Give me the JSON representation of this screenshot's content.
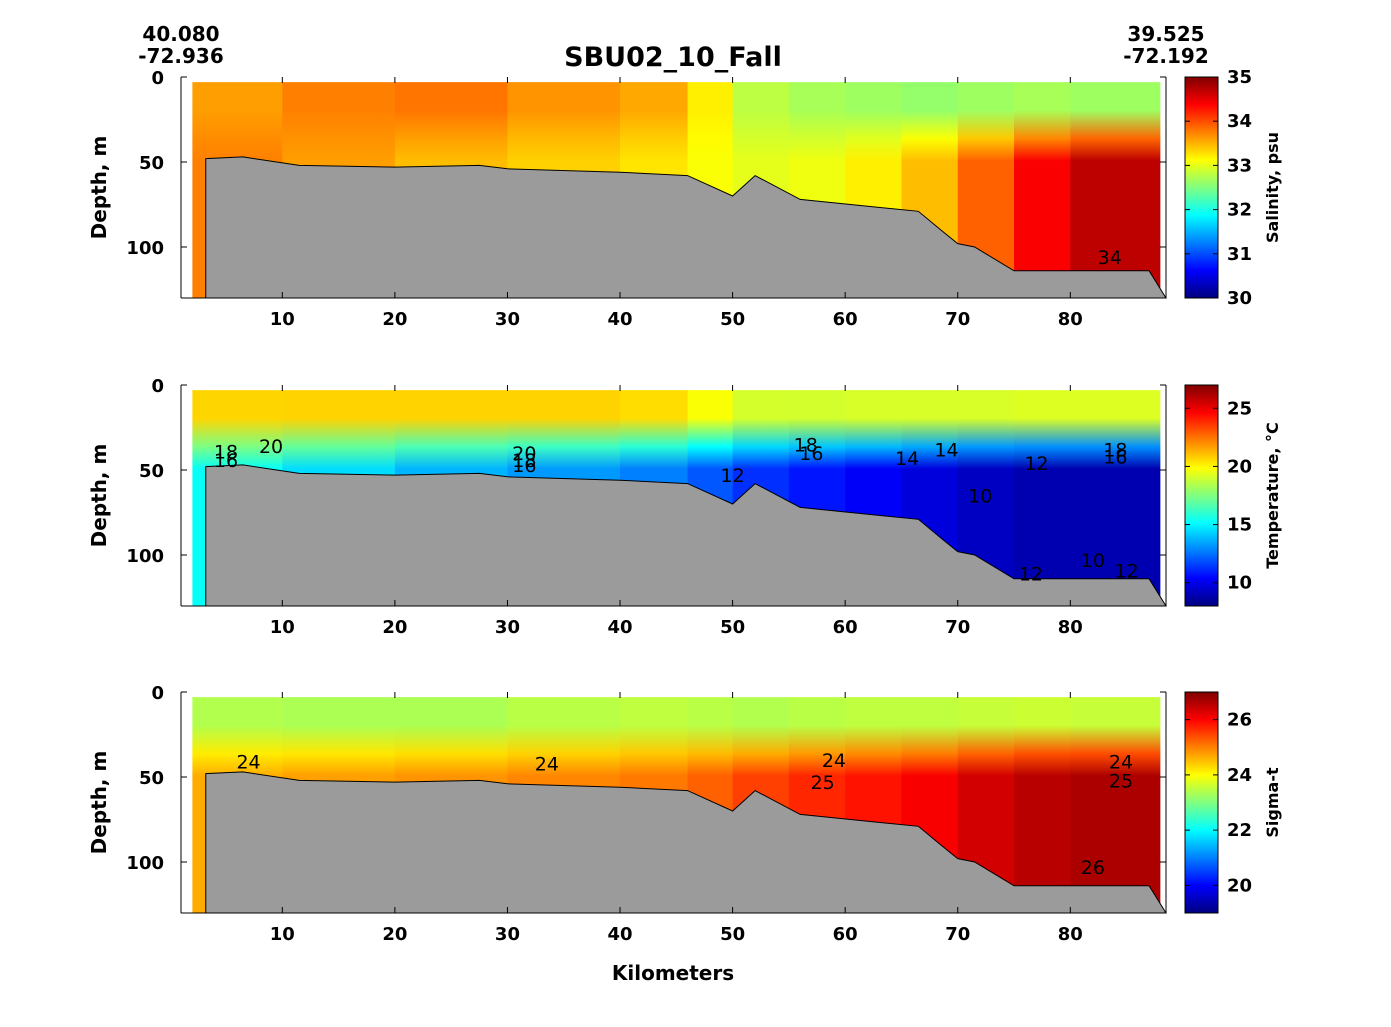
{
  "title": "SBU02_10_Fall",
  "start_coords": {
    "lat": "40.080",
    "lon": "-72.936"
  },
  "end_coords": {
    "lat": "39.525",
    "lon": "-72.192"
  },
  "colors": {
    "bottom": "#9b9b9b",
    "axis": "#000000"
  },
  "chart_data": [
    {
      "type": "heatmap",
      "id": "salinity",
      "xlabel": "",
      "ylabel": "Depth, m",
      "xlim": [
        1,
        88.5
      ],
      "ylim": [
        130,
        0
      ],
      "xticks": [
        10,
        20,
        30,
        40,
        50,
        60,
        70,
        80
      ],
      "yticks": [
        0,
        50,
        100
      ],
      "colorbar": {
        "label": "Salinity, psu",
        "min": 30,
        "max": 35,
        "ticks": [
          30,
          31,
          32,
          33,
          34,
          35
        ]
      },
      "field": {
        "distance_km": [
          2,
          10,
          20,
          30,
          40,
          46,
          50,
          55,
          60,
          65,
          70,
          75,
          80,
          88
        ],
        "surface_layer": [
          33.6,
          33.6,
          33.9,
          33.7,
          33.6,
          33.5,
          32.9,
          32.7,
          32.7,
          32.6,
          32.6,
          32.7,
          32.7,
          32.6
        ],
        "bottom_layer": [
          33.8,
          33.7,
          33.5,
          33.4,
          33.3,
          33.2,
          33.0,
          33.0,
          33.1,
          33.3,
          33.6,
          34.2,
          34.6,
          34.8
        ]
      },
      "contour_labels": [
        {
          "x": 83.5,
          "depth": 106,
          "text": "34"
        }
      ]
    },
    {
      "type": "heatmap",
      "id": "temperature",
      "xlabel": "",
      "ylabel": "Depth, m",
      "xlim": [
        1,
        88.5
      ],
      "ylim": [
        130,
        0
      ],
      "xticks": [
        10,
        20,
        30,
        40,
        50,
        60,
        70,
        80
      ],
      "yticks": [
        0,
        50,
        100
      ],
      "colorbar": {
        "label": "Temperature, °C",
        "min": 8,
        "max": 27,
        "ticks": [
          10,
          15,
          20,
          25
        ]
      },
      "field": {
        "distance_km": [
          2,
          10,
          20,
          30,
          40,
          46,
          50,
          55,
          60,
          65,
          70,
          75,
          80,
          88
        ],
        "surface_layer": [
          20.5,
          20.8,
          20.6,
          20.8,
          20.6,
          20.4,
          19.2,
          19.0,
          19.1,
          19.2,
          19.1,
          19.2,
          19.3,
          19.2
        ],
        "bottom_layer": [
          15.5,
          15.0,
          14.0,
          13.5,
          13.0,
          12.5,
          11.5,
          11.0,
          10.5,
          10.0,
          9.5,
          9.0,
          8.8,
          9.0
        ]
      },
      "contour_labels": [
        {
          "x": 5,
          "depth": 39,
          "text": "18"
        },
        {
          "x": 5,
          "depth": 44,
          "text": "16"
        },
        {
          "x": 9,
          "depth": 36,
          "text": "20"
        },
        {
          "x": 31.5,
          "depth": 40,
          "text": "20"
        },
        {
          "x": 31.5,
          "depth": 44,
          "text": "18"
        },
        {
          "x": 31.5,
          "depth": 47,
          "text": "16"
        },
        {
          "x": 50,
          "depth": 53,
          "text": "12"
        },
        {
          "x": 56.5,
          "depth": 35,
          "text": "18"
        },
        {
          "x": 57,
          "depth": 40,
          "text": "16"
        },
        {
          "x": 65.5,
          "depth": 43,
          "text": "14"
        },
        {
          "x": 69,
          "depth": 38,
          "text": "14"
        },
        {
          "x": 72,
          "depth": 65,
          "text": "10"
        },
        {
          "x": 77,
          "depth": 46,
          "text": "12"
        },
        {
          "x": 84,
          "depth": 38,
          "text": "18"
        },
        {
          "x": 84,
          "depth": 42,
          "text": "16"
        },
        {
          "x": 82,
          "depth": 103,
          "text": "10"
        },
        {
          "x": 76.5,
          "depth": 111,
          "text": "12"
        },
        {
          "x": 85,
          "depth": 109,
          "text": "12"
        }
      ]
    },
    {
      "type": "heatmap",
      "id": "sigma_t",
      "xlabel": "Kilometers",
      "ylabel": "Depth, m",
      "xlim": [
        1,
        88.5
      ],
      "ylim": [
        130,
        0
      ],
      "xticks": [
        10,
        20,
        30,
        40,
        50,
        60,
        70,
        80
      ],
      "yticks": [
        0,
        50,
        100
      ],
      "colorbar": {
        "label": "Sigma-t",
        "min": 19,
        "max": 27,
        "ticks": [
          20,
          22,
          24,
          26
        ]
      },
      "field": {
        "distance_km": [
          2,
          10,
          20,
          30,
          40,
          46,
          50,
          55,
          60,
          65,
          70,
          75,
          80,
          88
        ],
        "surface_layer": [
          23.4,
          23.4,
          23.3,
          23.4,
          23.5,
          23.5,
          23.4,
          23.4,
          23.5,
          23.5,
          23.5,
          23.6,
          23.6,
          23.5
        ],
        "bottom_layer": [
          24.6,
          24.7,
          24.8,
          24.9,
          25.0,
          25.1,
          25.4,
          25.6,
          25.8,
          25.9,
          26.2,
          26.5,
          26.6,
          26.7
        ]
      },
      "contour_labels": [
        {
          "x": 7,
          "depth": 41,
          "text": "24"
        },
        {
          "x": 33.5,
          "depth": 42,
          "text": "24"
        },
        {
          "x": 59,
          "depth": 40,
          "text": "24"
        },
        {
          "x": 58,
          "depth": 53,
          "text": "25"
        },
        {
          "x": 84.5,
          "depth": 41,
          "text": "24"
        },
        {
          "x": 84.5,
          "depth": 52,
          "text": "25"
        },
        {
          "x": 82,
          "depth": 103,
          "text": "26"
        }
      ]
    }
  ],
  "bathymetry": {
    "distance_km": [
      3.2,
      6.5,
      11.5,
      20,
      27.5,
      30,
      40,
      46,
      50,
      52,
      56,
      62,
      66.5,
      68.5,
      70,
      71.5,
      75,
      79,
      87,
      88.5
    ],
    "depth_m": [
      48,
      47,
      52,
      53,
      52,
      54,
      56,
      58,
      70,
      58,
      72,
      76,
      79,
      90,
      98,
      100,
      114,
      114,
      114,
      130
    ]
  },
  "surface_gap_depth": 3
}
